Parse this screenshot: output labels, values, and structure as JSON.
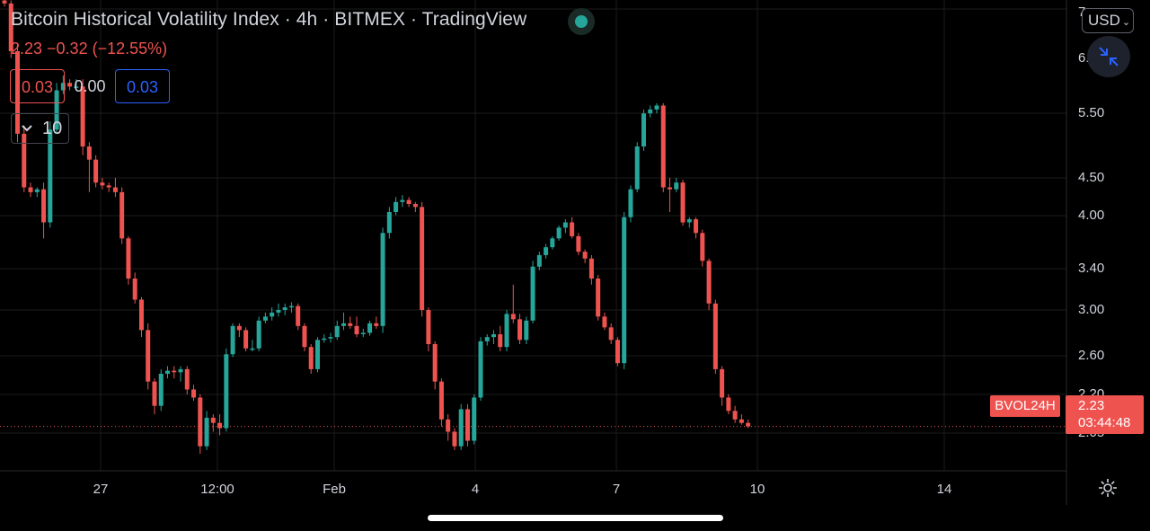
{
  "header": {
    "title": "Bitcoin Historical Volatility Index · 4h · BITMEX · TradingView",
    "change": "2.23  −0.32 (−12.55%)"
  },
  "trade": {
    "sell": "0.03",
    "spread": "0.00",
    "buy": "0.03",
    "lot": "10"
  },
  "currency": "USD",
  "price_axis": {
    "labels": [
      "7",
      "6.",
      "5.50",
      "4.50",
      "4.00",
      "3.40",
      "3.00",
      "2.60",
      "2.20",
      "2.05"
    ]
  },
  "time_axis": {
    "labels": [
      "27",
      "12:00",
      "Feb",
      "4",
      "7",
      "10",
      "14"
    ]
  },
  "last_price": {
    "symbol": "BVOL24H",
    "price": "2.23",
    "countdown": "03:44:48"
  },
  "colors": {
    "up": "#26a69a",
    "down": "#ef5350",
    "background": "#000000",
    "grid": "#1c1c1c",
    "accent": "#2962ff"
  },
  "icons": [
    "status-dot-icon",
    "chevron-down-icon",
    "collapse-icon",
    "gear-icon"
  ],
  "chart_data": {
    "type": "candlestick",
    "title": "Bitcoin Historical Volatility Index",
    "interval": "4h",
    "scale": "log",
    "ylim": [
      2.0,
      7.0
    ],
    "last": 2.23,
    "candles": [
      [
        6.6,
        6.65,
        6.5,
        6.55
      ],
      [
        6.55,
        6.6,
        5.7,
        5.8
      ],
      [
        5.8,
        5.9,
        4.6,
        4.7
      ],
      [
        4.7,
        4.8,
        4.05,
        4.1
      ],
      [
        4.1,
        4.15,
        4.0,
        4.05
      ],
      [
        4.05,
        4.1,
        4.0,
        4.08
      ],
      [
        4.08,
        4.15,
        3.6,
        3.75
      ],
      [
        3.75,
        4.85,
        3.7,
        4.75
      ],
      [
        4.75,
        5.35,
        4.7,
        5.25
      ],
      [
        5.25,
        5.45,
        5.2,
        5.35
      ],
      [
        5.35,
        5.4,
        5.25,
        5.3
      ],
      [
        5.3,
        5.4,
        5.25,
        5.3
      ],
      [
        5.3,
        5.4,
        4.45,
        4.55
      ],
      [
        4.55,
        4.6,
        4.05,
        4.4
      ],
      [
        4.4,
        4.45,
        4.1,
        4.15
      ],
      [
        4.15,
        4.2,
        4.08,
        4.12
      ],
      [
        4.12,
        4.15,
        4.05,
        4.1
      ],
      [
        4.1,
        4.2,
        4.0,
        4.05
      ],
      [
        4.05,
        4.1,
        3.55,
        3.6
      ],
      [
        3.6,
        3.62,
        3.2,
        3.25
      ],
      [
        3.25,
        3.3,
        3.05,
        3.08
      ],
      [
        3.08,
        3.1,
        2.8,
        2.85
      ],
      [
        2.85,
        2.9,
        2.45,
        2.5
      ],
      [
        2.5,
        2.52,
        2.3,
        2.35
      ],
      [
        2.35,
        2.58,
        2.32,
        2.55
      ],
      [
        2.55,
        2.6,
        2.52,
        2.57
      ],
      [
        2.57,
        2.6,
        2.52,
        2.56
      ],
      [
        2.56,
        2.6,
        2.5,
        2.58
      ],
      [
        2.58,
        2.6,
        2.42,
        2.45
      ],
      [
        2.45,
        2.48,
        2.38,
        2.4
      ],
      [
        2.4,
        2.42,
        2.08,
        2.12
      ],
      [
        2.12,
        2.32,
        2.1,
        2.28
      ],
      [
        2.28,
        2.3,
        2.2,
        2.25
      ],
      [
        2.25,
        2.3,
        2.18,
        2.22
      ],
      [
        2.22,
        2.72,
        2.2,
        2.68
      ],
      [
        2.68,
        2.9,
        2.66,
        2.88
      ],
      [
        2.88,
        2.9,
        2.8,
        2.85
      ],
      [
        2.85,
        2.87,
        2.7,
        2.72
      ],
      [
        2.72,
        2.78,
        2.7,
        2.72
      ],
      [
        2.72,
        2.95,
        2.7,
        2.92
      ],
      [
        2.92,
        2.98,
        2.9,
        2.95
      ],
      [
        2.95,
        3.02,
        2.92,
        2.98
      ],
      [
        2.98,
        3.05,
        2.95,
        3.0
      ],
      [
        3.0,
        3.05,
        2.96,
        3.02
      ],
      [
        3.02,
        3.06,
        2.98,
        3.03
      ],
      [
        3.03,
        3.05,
        2.85,
        2.88
      ],
      [
        2.88,
        2.9,
        2.7,
        2.73
      ],
      [
        2.73,
        2.75,
        2.55,
        2.58
      ],
      [
        2.58,
        2.8,
        2.56,
        2.78
      ],
      [
        2.78,
        2.82,
        2.76,
        2.79
      ],
      [
        2.79,
        2.83,
        2.76,
        2.8
      ],
      [
        2.8,
        2.92,
        2.78,
        2.88
      ],
      [
        2.88,
        2.98,
        2.85,
        2.9
      ],
      [
        2.9,
        2.95,
        2.86,
        2.88
      ],
      [
        2.88,
        2.95,
        2.8,
        2.82
      ],
      [
        2.82,
        2.86,
        2.8,
        2.83
      ],
      [
        2.83,
        2.92,
        2.81,
        2.9
      ],
      [
        2.9,
        2.95,
        2.86,
        2.88
      ],
      [
        2.88,
        3.7,
        2.83,
        3.65
      ],
      [
        3.65,
        3.9,
        3.6,
        3.85
      ],
      [
        3.85,
        4.0,
        3.82,
        3.95
      ],
      [
        3.95,
        4.02,
        3.9,
        3.97
      ],
      [
        3.97,
        4.0,
        3.9,
        3.93
      ],
      [
        3.93,
        3.95,
        3.85,
        3.9
      ],
      [
        3.9,
        3.95,
        2.95,
        3.0
      ],
      [
        3.0,
        3.02,
        2.7,
        2.75
      ],
      [
        2.75,
        2.77,
        2.45,
        2.5
      ],
      [
        2.5,
        2.52,
        2.23,
        2.27
      ],
      [
        2.27,
        2.3,
        2.15,
        2.2
      ],
      [
        2.2,
        2.22,
        2.1,
        2.12
      ],
      [
        2.12,
        2.36,
        2.1,
        2.33
      ],
      [
        2.33,
        2.36,
        2.12,
        2.15
      ],
      [
        2.15,
        2.42,
        2.13,
        2.4
      ],
      [
        2.4,
        2.8,
        2.38,
        2.77
      ],
      [
        2.77,
        2.82,
        2.74,
        2.8
      ],
      [
        2.8,
        2.85,
        2.75,
        2.82
      ],
      [
        2.82,
        2.88,
        2.7,
        2.73
      ],
      [
        2.73,
        3.0,
        2.7,
        2.97
      ],
      [
        2.97,
        3.2,
        2.9,
        2.93
      ],
      [
        2.93,
        2.97,
        2.75,
        2.78
      ],
      [
        2.78,
        2.95,
        2.75,
        2.92
      ],
      [
        2.92,
        3.4,
        2.9,
        3.35
      ],
      [
        3.35,
        3.48,
        3.32,
        3.45
      ],
      [
        3.45,
        3.55,
        3.42,
        3.52
      ],
      [
        3.52,
        3.62,
        3.5,
        3.6
      ],
      [
        3.6,
        3.72,
        3.58,
        3.7
      ],
      [
        3.7,
        3.78,
        3.65,
        3.75
      ],
      [
        3.75,
        3.8,
        3.6,
        3.62
      ],
      [
        3.62,
        3.65,
        3.45,
        3.48
      ],
      [
        3.48,
        3.5,
        3.38,
        3.42
      ],
      [
        3.42,
        3.45,
        3.2,
        3.25
      ],
      [
        3.25,
        3.28,
        2.92,
        2.95
      ],
      [
        2.95,
        2.98,
        2.85,
        2.87
      ],
      [
        2.87,
        2.9,
        2.75,
        2.78
      ],
      [
        2.78,
        2.8,
        2.6,
        2.62
      ],
      [
        2.62,
        3.85,
        2.58,
        3.8
      ],
      [
        3.8,
        4.12,
        3.75,
        4.08
      ],
      [
        4.08,
        4.6,
        4.05,
        4.55
      ],
      [
        4.55,
        5.0,
        4.5,
        4.95
      ],
      [
        4.95,
        5.05,
        4.9,
        5.0
      ],
      [
        5.0,
        5.08,
        4.95,
        5.05
      ],
      [
        5.05,
        5.08,
        4.05,
        4.1
      ],
      [
        4.1,
        4.2,
        3.85,
        4.08
      ],
      [
        4.08,
        4.2,
        4.05,
        4.15
      ],
      [
        4.15,
        4.18,
        3.72,
        3.75
      ],
      [
        3.75,
        3.8,
        3.7,
        3.78
      ],
      [
        3.78,
        3.8,
        3.6,
        3.65
      ],
      [
        3.65,
        3.68,
        3.35,
        3.4
      ],
      [
        3.4,
        3.42,
        3.0,
        3.05
      ],
      [
        3.05,
        3.08,
        2.55,
        2.58
      ],
      [
        2.58,
        2.6,
        2.35,
        2.4
      ],
      [
        2.4,
        2.42,
        2.3,
        2.32
      ],
      [
        2.32,
        2.35,
        2.25,
        2.27
      ],
      [
        2.27,
        2.3,
        2.24,
        2.25
      ],
      [
        2.25,
        2.27,
        2.22,
        2.23
      ]
    ]
  }
}
